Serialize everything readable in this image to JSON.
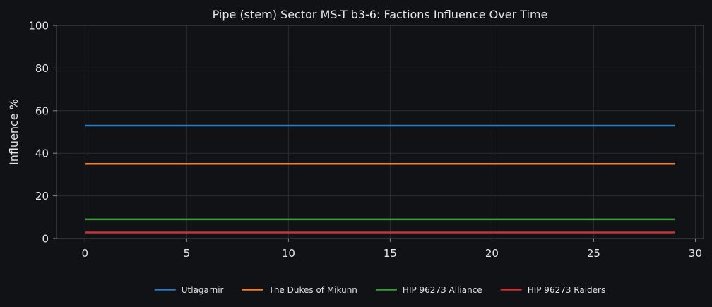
{
  "chart_data": {
    "type": "line",
    "title": "Pipe (stem) Sector MS-T b3-6: Factions Influence Over Time",
    "xlabel": "",
    "ylabel": "Influence %",
    "xlim": [
      -1.4,
      30.4
    ],
    "ylim": [
      0,
      100
    ],
    "xticks": [
      0,
      5,
      10,
      15,
      20,
      25,
      30
    ],
    "yticks": [
      0,
      20,
      40,
      60,
      80,
      100
    ],
    "grid": true,
    "legend_position": "bottom-center",
    "x": [
      0,
      29
    ],
    "series": [
      {
        "name": "Utlagarnir",
        "color": "#2f7ab9",
        "values": [
          53.0,
          53.0
        ]
      },
      {
        "name": "The Dukes of Mikunn",
        "color": "#f0812a",
        "values": [
          35.0,
          35.0
        ]
      },
      {
        "name": "HIP 96273 Alliance",
        "color": "#38a03a",
        "values": [
          9.0,
          9.0
        ]
      },
      {
        "name": "HIP 96273 Raiders",
        "color": "#d0302f",
        "values": [
          2.8,
          2.8
        ]
      }
    ]
  },
  "colors": {
    "background": "#111215",
    "text": "#e6e6e6",
    "grid": "#2a2c31"
  }
}
